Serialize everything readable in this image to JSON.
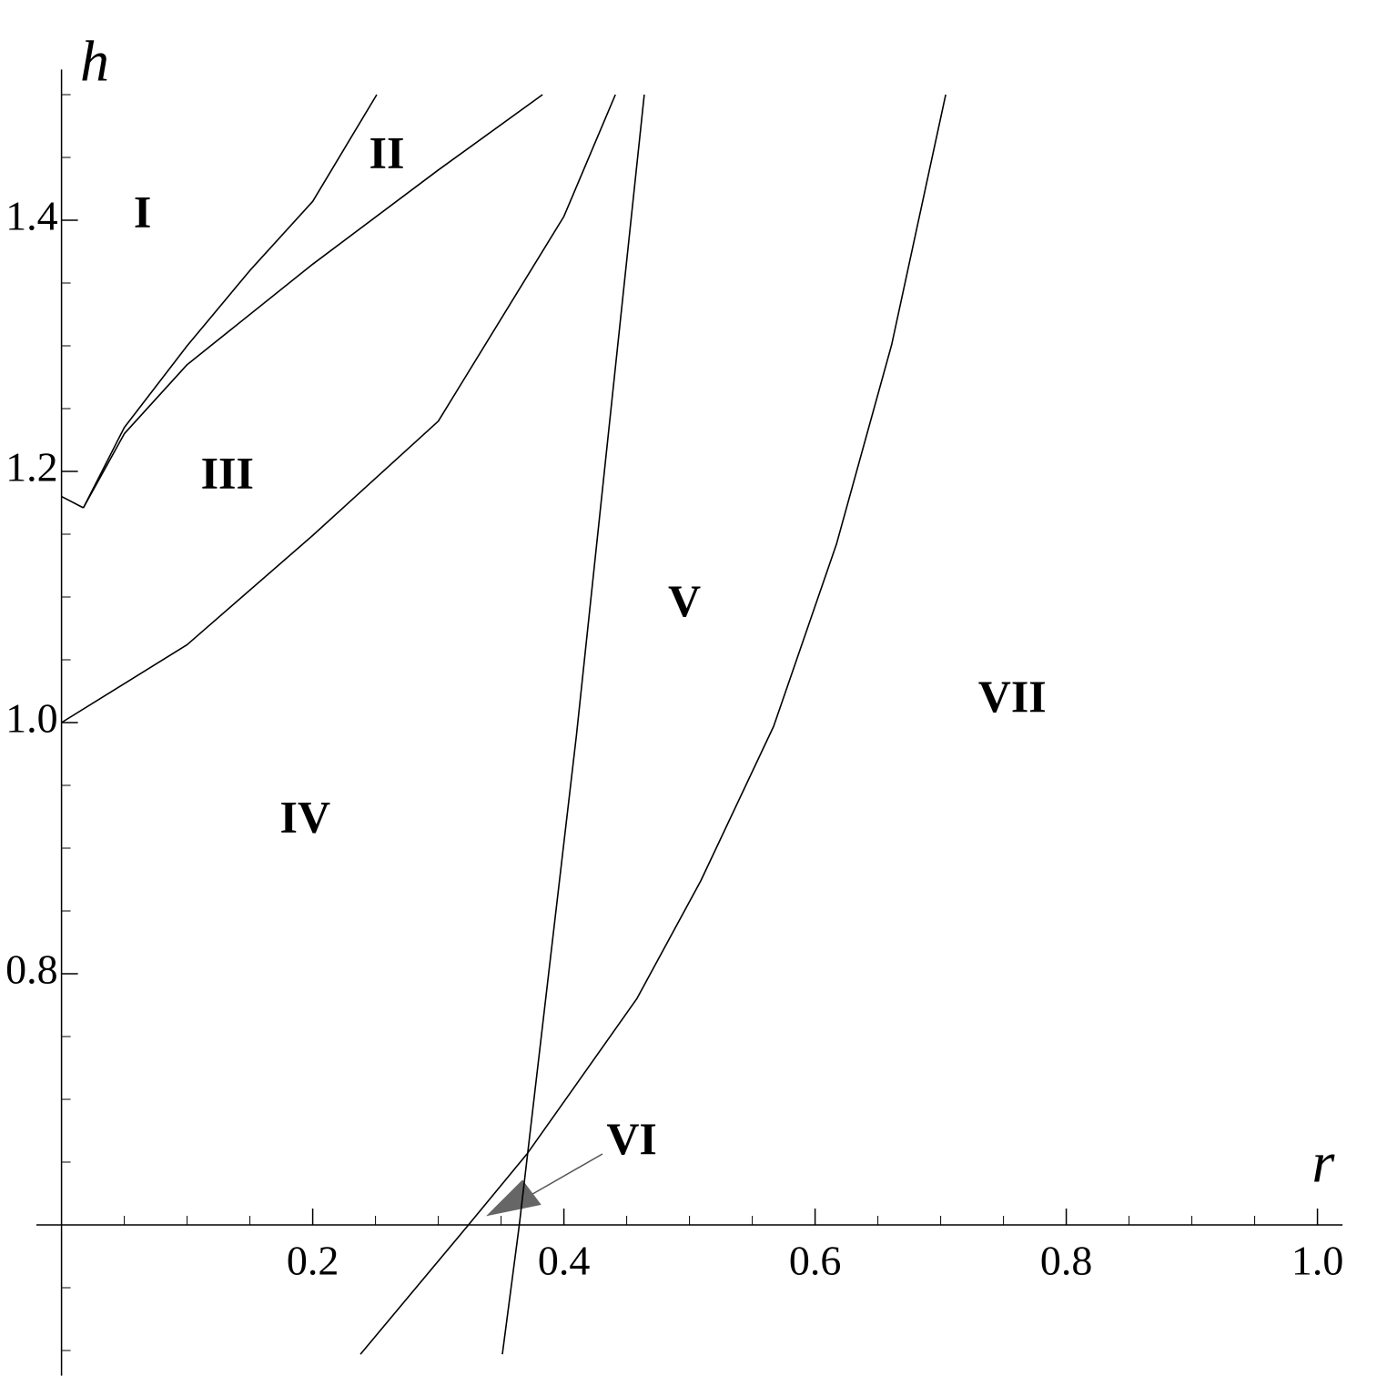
{
  "chart_data": {
    "type": "line",
    "x_label": "r",
    "y_label": "h",
    "xlim": [
      -0.02,
      1.02
    ],
    "ylim": [
      0.48,
      1.52
    ],
    "x_axis_at": 0.6,
    "y_axis_at": 0,
    "xticks": [
      0.2,
      0.4,
      0.6,
      0.8,
      {
        "value": 1,
        "label": "1.0"
      }
    ],
    "yticks": [
      0.8,
      {
        "value": 1,
        "label": "1.0"
      },
      1.2,
      1.4
    ],
    "xminorticks": [
      0.05,
      0.1,
      0.15,
      0.25,
      0.3,
      0.35,
      0.45,
      0.5,
      0.55,
      0.65,
      0.7,
      0.75,
      0.85,
      0.9,
      0.95
    ],
    "yminorticks": [
      0.5,
      0.55,
      0.65,
      0.7,
      0.75,
      0.85,
      0.9,
      0.95,
      1.05,
      1.1,
      1.15,
      1.25,
      1.3,
      1.35,
      1.45,
      1.5
    ],
    "series": [
      {
        "color": "#000000",
        "x": [
          0,
          0.0174
        ],
        "values": [
          1.18,
          1.171
        ]
      },
      {
        "color": "#000000",
        "x": [
          0.0174,
          0.05,
          0.1,
          0.15,
          0.2,
          0.251
        ],
        "values": [
          1.171,
          1.235,
          1.3,
          1.36,
          1.415,
          1.5
        ]
      },
      {
        "color": "#000000",
        "x": [
          0.0174,
          0.05,
          0.1,
          0.2,
          0.3,
          0.383
        ],
        "values": [
          1.171,
          1.23,
          1.285,
          1.365,
          1.44,
          1.5
        ]
      },
      {
        "color": "#000000",
        "x": [
          0,
          0.1,
          0.2,
          0.3,
          0.4,
          0.441
        ],
        "values": [
          1.0,
          1.062,
          1.149,
          1.24,
          1.403,
          1.5
        ]
      },
      {
        "color": "#000000",
        "x": [
          0.351,
          0.3645,
          0.41,
          0.464
        ],
        "values": [
          0.497,
          0.6,
          0.99,
          1.5
        ]
      },
      {
        "color": "#000000",
        "x": [
          0.238,
          0.324,
          0.371,
          0.458,
          0.509,
          0.567,
          0.617,
          0.661,
          0.704
        ],
        "values": [
          0.497,
          0.6,
          0.657,
          0.78,
          0.874,
          0.997,
          1.142,
          1.301,
          1.5
        ]
      }
    ],
    "shaded_region": {
      "color": "#666666",
      "x": [
        0.338,
        0.367,
        0.382
      ],
      "values": [
        0.607,
        0.636,
        0.616
      ]
    },
    "annotations": [
      {
        "text": "I",
        "x": 0.0645,
        "y": 1.403
      },
      {
        "text": "II",
        "x": 0.259,
        "y": 1.45
      },
      {
        "text": "III",
        "x": 0.132,
        "y": 1.195
      },
      {
        "text": "IV",
        "x": 0.194,
        "y": 0.921
      },
      {
        "text": "V",
        "x": 0.496,
        "y": 1.093
      },
      {
        "text": "VI",
        "x": 0.454,
        "y": 0.665
      },
      {
        "text": "VII",
        "x": 0.757,
        "y": 1.017
      }
    ]
  }
}
